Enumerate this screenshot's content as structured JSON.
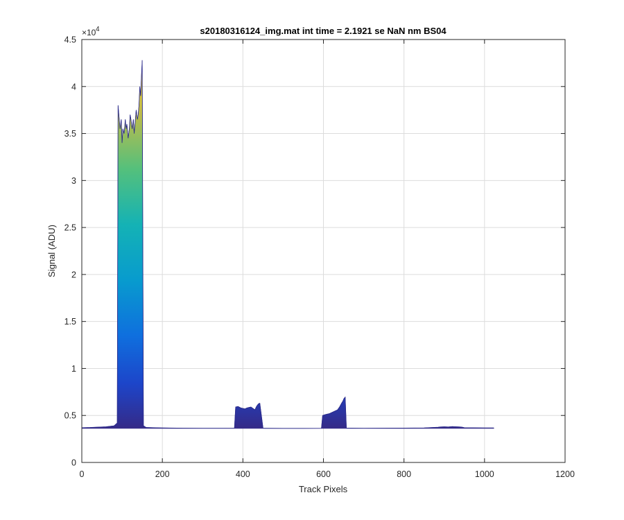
{
  "chart_data": {
    "type": "area",
    "title": "s20180316124_img.mat int time = 2.1921 se  NaN nm BS04",
    "xlabel": "Track Pixels",
    "ylabel": "Signal (ADU)",
    "xlim": [
      0,
      1200
    ],
    "ylim": [
      0,
      45000
    ],
    "xticks": [
      0,
      200,
      400,
      600,
      800,
      1000,
      1200
    ],
    "xtick_labels": [
      "0",
      "200",
      "400",
      "600",
      "800",
      "1000",
      "1200"
    ],
    "yticks": [
      0,
      5000,
      10000,
      15000,
      20000,
      25000,
      30000,
      35000,
      40000,
      45000
    ],
    "ytick_labels": [
      "0",
      "0.5",
      "1",
      "1.5",
      "2",
      "2.5",
      "3",
      "3.5",
      "4",
      "4.5"
    ],
    "y_exponent_label": "×10",
    "y_exponent_power": "4",
    "grid": true,
    "colormap": "parula",
    "series": [
      {
        "x": [
          0,
          20,
          40,
          60,
          80,
          88,
          90,
          92,
          95,
          98,
          100,
          102,
          105,
          108,
          110,
          112,
          115,
          118,
          120,
          122,
          125,
          128,
          130,
          132,
          135,
          138,
          140,
          142,
          144,
          146,
          148,
          150,
          153,
          160,
          200,
          250,
          300,
          350,
          379,
          382,
          388,
          395,
          400,
          405,
          410,
          415,
          420,
          425,
          430,
          433,
          436,
          439,
          442,
          450,
          500,
          550,
          595,
          598,
          605,
          615,
          625,
          635,
          640,
          645,
          648,
          651,
          654,
          657,
          700,
          750,
          800,
          850,
          885,
          890,
          900,
          910,
          920,
          930,
          940,
          945,
          950,
          1000,
          1023
        ],
        "y": [
          3700,
          3720,
          3760,
          3800,
          3900,
          4200,
          38000,
          37000,
          35500,
          36500,
          34000,
          35500,
          35000,
          36500,
          35500,
          36000,
          34500,
          35500,
          37000,
          36500,
          35500,
          36500,
          35000,
          36000,
          37500,
          36500,
          37000,
          38000,
          40000,
          39000,
          41000,
          42800,
          3900,
          3720,
          3680,
          3650,
          3640,
          3640,
          3650,
          5900,
          5950,
          5800,
          5750,
          5700,
          5800,
          5850,
          5900,
          5750,
          5600,
          5900,
          6100,
          6250,
          6300,
          3640,
          3630,
          3630,
          3640,
          5000,
          5100,
          5200,
          5400,
          5600,
          5900,
          6300,
          6500,
          6800,
          6950,
          3650,
          3640,
          3650,
          3660,
          3680,
          3750,
          3780,
          3800,
          3780,
          3820,
          3800,
          3780,
          3750,
          3700,
          3680,
          3680
        ]
      }
    ]
  }
}
